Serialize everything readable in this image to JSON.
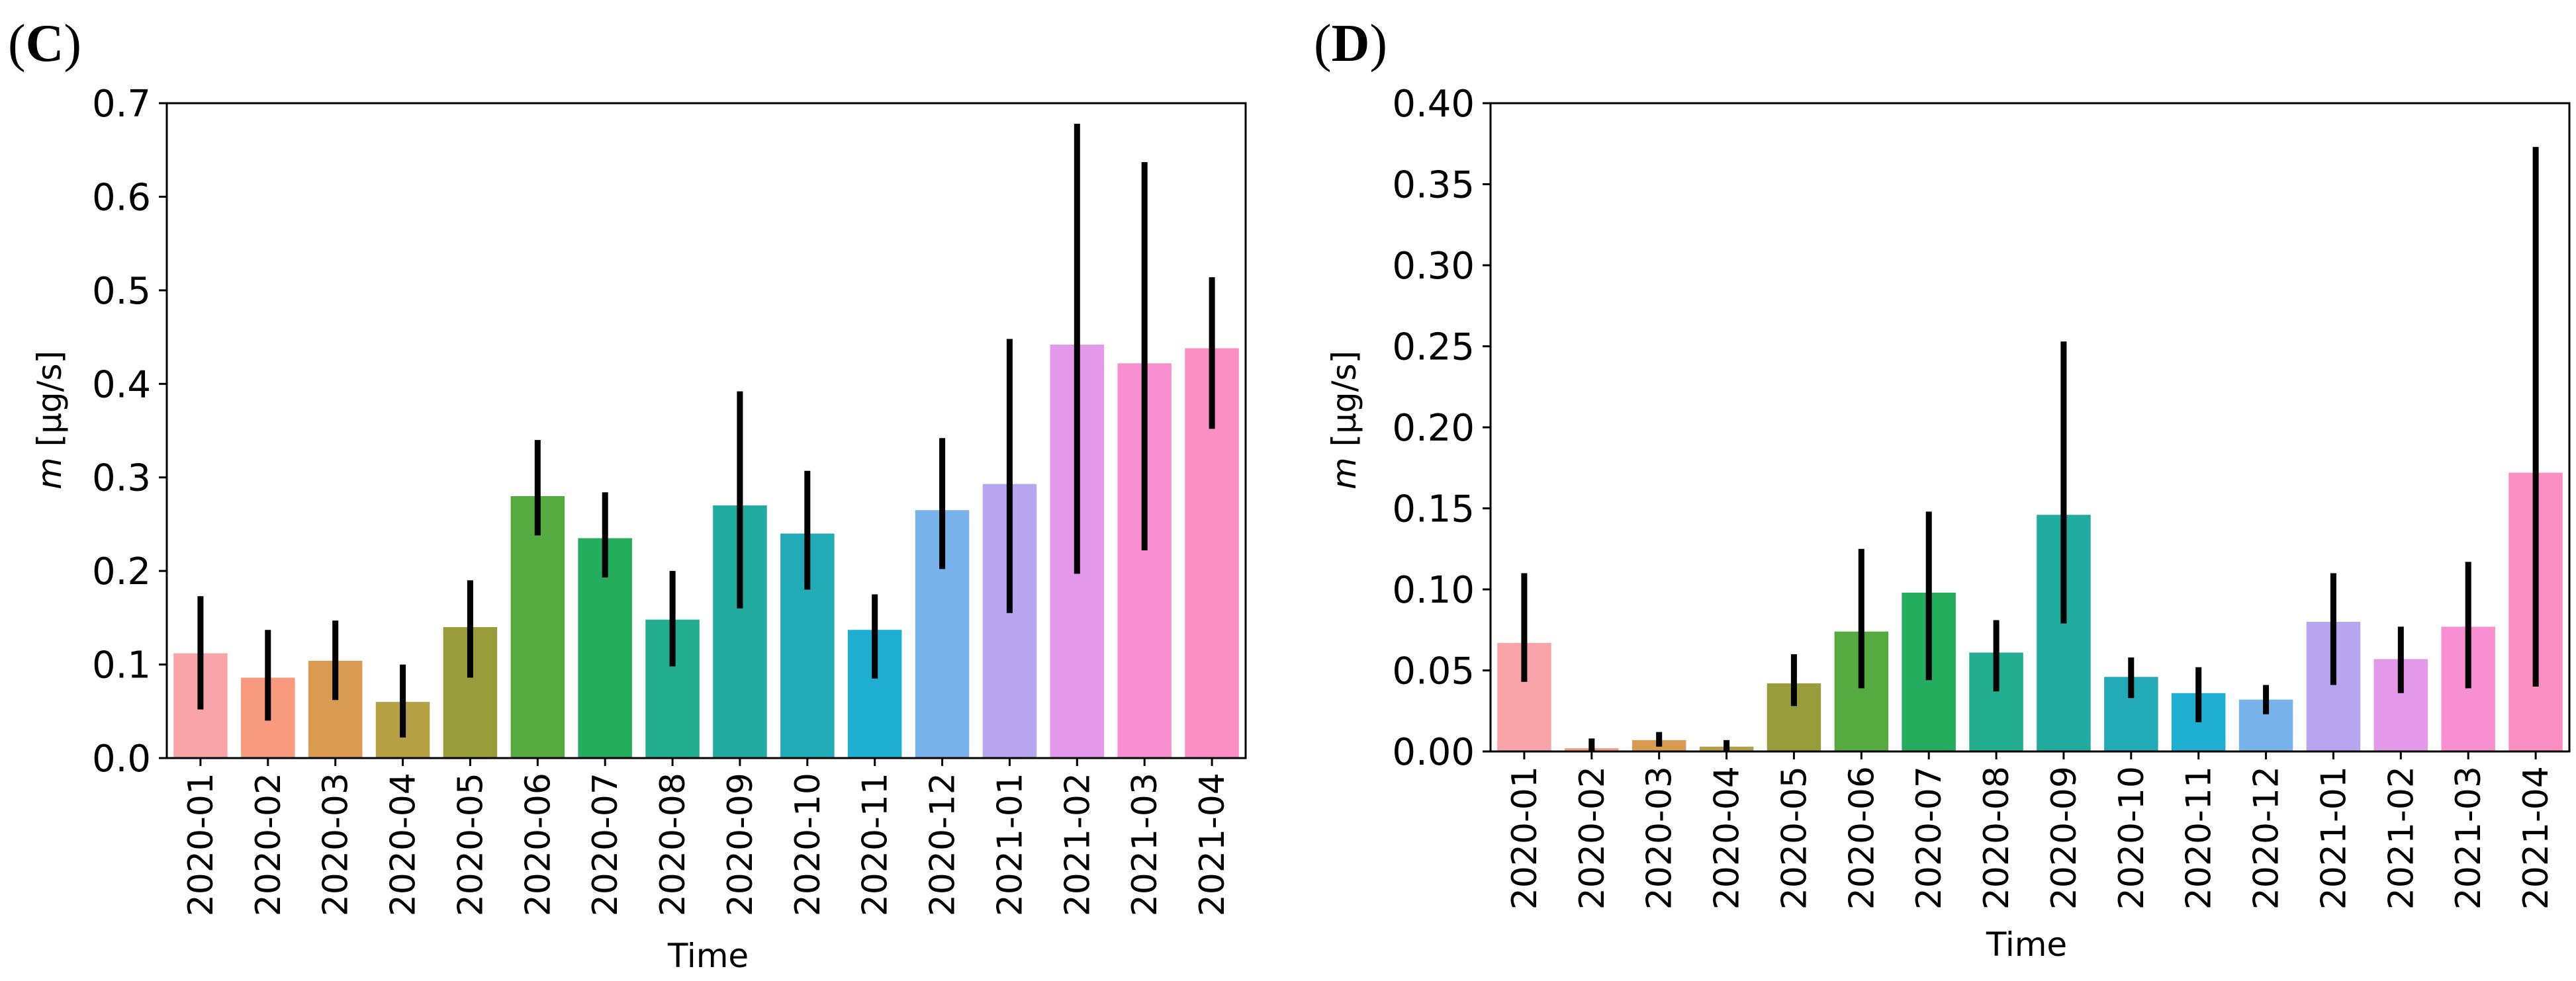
{
  "chart_data": [
    {
      "type": "bar",
      "panel_label": "(C)",
      "panel_letter": "C",
      "categories": [
        "2020-01",
        "2020-02",
        "2020-03",
        "2020-04",
        "2020-05",
        "2020-06",
        "2020-07",
        "2020-08",
        "2020-09",
        "2020-10",
        "2020-11",
        "2020-12",
        "2021-01",
        "2021-02",
        "2021-03",
        "2021-04"
      ],
      "values": [
        0.112,
        0.086,
        0.104,
        0.06,
        0.14,
        0.28,
        0.235,
        0.148,
        0.27,
        0.24,
        0.137,
        0.265,
        0.293,
        0.442,
        0.422,
        0.438
      ],
      "error_low": [
        0.052,
        0.04,
        0.062,
        0.022,
        0.086,
        0.238,
        0.193,
        0.098,
        0.16,
        0.18,
        0.085,
        0.202,
        0.155,
        0.197,
        0.222,
        0.352
      ],
      "error_high": [
        0.173,
        0.137,
        0.147,
        0.1,
        0.19,
        0.34,
        0.284,
        0.2,
        0.392,
        0.307,
        0.175,
        0.342,
        0.448,
        0.678,
        0.637,
        0.514
      ],
      "colors": [
        "#f8a4a8",
        "#f79a7e",
        "#d99a52",
        "#b5a043",
        "#999c3a",
        "#55ab3f",
        "#25ad5e",
        "#21ad8e",
        "#21ab9f",
        "#22aab6",
        "#1daed1",
        "#77b2eb",
        "#b7a5f0",
        "#e398ea",
        "#f78fd1",
        "#fb8fc3"
      ],
      "title": "",
      "xlabel": "Time",
      "ylabel_italic": "m",
      "ylabel_rest": " [μg/s]",
      "ylim": [
        0,
        0.7
      ],
      "yticks": [
        0.0,
        0.1,
        0.2,
        0.3,
        0.4,
        0.5,
        0.6,
        0.7
      ],
      "ytick_labels": [
        "0.0",
        "0.1",
        "0.2",
        "0.3",
        "0.4",
        "0.5",
        "0.6",
        "0.7"
      ],
      "grid": false,
      "legend": "none"
    },
    {
      "type": "bar",
      "panel_label": "(D)",
      "panel_letter": "D",
      "categories": [
        "2020-01",
        "2020-02",
        "2020-03",
        "2020-04",
        "2020-05",
        "2020-06",
        "2020-07",
        "2020-08",
        "2020-09",
        "2020-10",
        "2020-11",
        "2020-12",
        "2021-01",
        "2021-02",
        "2021-03",
        "2021-04"
      ],
      "values": [
        0.067,
        0.002,
        0.007,
        0.003,
        0.042,
        0.074,
        0.098,
        0.061,
        0.146,
        0.046,
        0.036,
        0.032,
        0.08,
        0.057,
        0.077,
        0.172
      ],
      "error_low": [
        0.043,
        0.0,
        0.003,
        0.0,
        0.028,
        0.039,
        0.044,
        0.037,
        0.079,
        0.033,
        0.018,
        0.023,
        0.041,
        0.036,
        0.039,
        0.04
      ],
      "error_high": [
        0.11,
        0.008,
        0.012,
        0.007,
        0.06,
        0.125,
        0.148,
        0.081,
        0.253,
        0.058,
        0.052,
        0.041,
        0.11,
        0.077,
        0.117,
        0.373
      ],
      "colors": [
        "#f8a4a8",
        "#f79a7e",
        "#d99a52",
        "#b5a043",
        "#999c3a",
        "#55ab3f",
        "#25ad5e",
        "#21ad8e",
        "#21ab9f",
        "#22aab6",
        "#1daed1",
        "#77b2eb",
        "#b7a5f0",
        "#e398ea",
        "#f78fd1",
        "#fb8fc3"
      ],
      "title": "",
      "xlabel": "Time",
      "ylabel_italic": "m",
      "ylabel_rest": " [μg/s]",
      "ylim": [
        0,
        0.4
      ],
      "yticks": [
        0.0,
        0.05,
        0.1,
        0.15,
        0.2,
        0.25,
        0.3,
        0.35,
        0.4
      ],
      "ytick_labels": [
        "0.00",
        "0.05",
        "0.10",
        "0.15",
        "0.20",
        "0.25",
        "0.30",
        "0.35",
        "0.40"
      ],
      "grid": false,
      "legend": "none"
    }
  ]
}
